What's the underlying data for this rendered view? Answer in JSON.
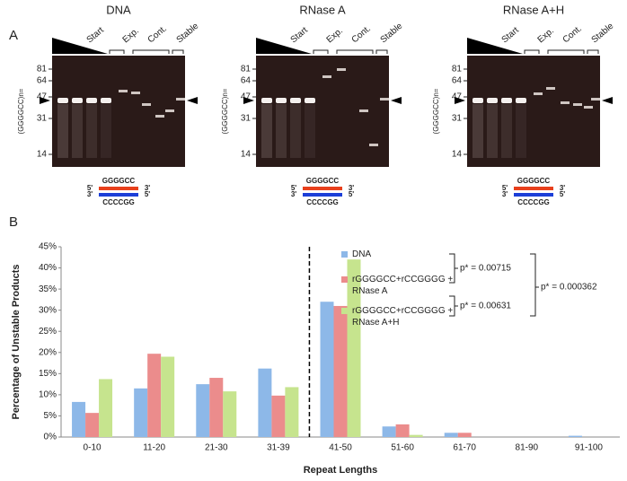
{
  "panel_a": {
    "label": "A",
    "gels": [
      {
        "title": "DNA",
        "lanes": [
          "Start",
          "Exp.",
          "Cont.",
          "Stable"
        ],
        "ladder": [
          "81",
          "64",
          "47",
          "31",
          "14"
        ],
        "y_label": "(GGGGCC)n=",
        "top_strand": "GGGGCC",
        "bottom_strand": "CCCCGG",
        "ends": [
          "5'",
          "3'",
          "3'",
          "5'"
        ]
      },
      {
        "title": "RNase A",
        "lanes": [
          "Start",
          "Exp.",
          "Cont.",
          "Stable"
        ],
        "ladder": [
          "81",
          "64",
          "47",
          "31",
          "14"
        ],
        "y_label": "(GGGGCC)n=",
        "top_strand": "GGGGCC",
        "bottom_strand": "CCCCGG",
        "ends": [
          "5'",
          "3'",
          "3'",
          "5'"
        ]
      },
      {
        "title": "RNase A+H",
        "lanes": [
          "Start",
          "Exp.",
          "Cont.",
          "Stable"
        ],
        "ladder": [
          "81",
          "64",
          "47",
          "31",
          "14"
        ],
        "y_label": "(GGGGCC)n=",
        "top_strand": "GGGGCC",
        "bottom_strand": "CCCCGG",
        "ends": [
          "5'",
          "3'",
          "3'",
          "5'"
        ]
      }
    ]
  },
  "chart_data": {
    "type": "bar",
    "panel_label": "B",
    "x_label": "Repeat Lengths",
    "y_label": "Percentage of Unstable Products",
    "categories": [
      "0-10",
      "11-20",
      "21-30",
      "31-39",
      "41-50",
      "51-60",
      "61-70",
      "81-90",
      "91-100"
    ],
    "series": [
      {
        "name": "DNA",
        "color": "#8db8e8",
        "values": [
          8.3,
          11.5,
          12.5,
          16.2,
          32,
          2.5,
          1,
          0,
          0.3
        ]
      },
      {
        "name": "rGGGGCC+rCCGGGG + RNase A",
        "color": "#eb8c8c",
        "values": [
          5.7,
          19.7,
          14,
          9.8,
          31,
          3,
          1,
          0,
          0
        ]
      },
      {
        "name": "rGGGGCC+rCCGGGG + RNase A+H",
        "color": "#c6e48e",
        "values": [
          13.7,
          19,
          10.8,
          11.8,
          42,
          0.5,
          0,
          0,
          0
        ]
      }
    ],
    "ylim": [
      0,
      45
    ],
    "yticks": [
      {
        "value": 0,
        "label": "0%"
      },
      {
        "value": 5,
        "label": "5%"
      },
      {
        "value": 10,
        "label": "10%"
      },
      {
        "value": 15,
        "label": "15%"
      },
      {
        "value": 20,
        "label": "20%"
      },
      {
        "value": 25,
        "label": "25%"
      },
      {
        "value": 30,
        "label": "30%"
      },
      {
        "value": 35,
        "label": "35%"
      },
      {
        "value": 40,
        "label": "40%"
      },
      {
        "value": 45,
        "label": "45%"
      }
    ],
    "annotations": [
      "p* = 0.00715",
      "p* = 0.00631",
      "p* = 0.000362"
    ]
  }
}
